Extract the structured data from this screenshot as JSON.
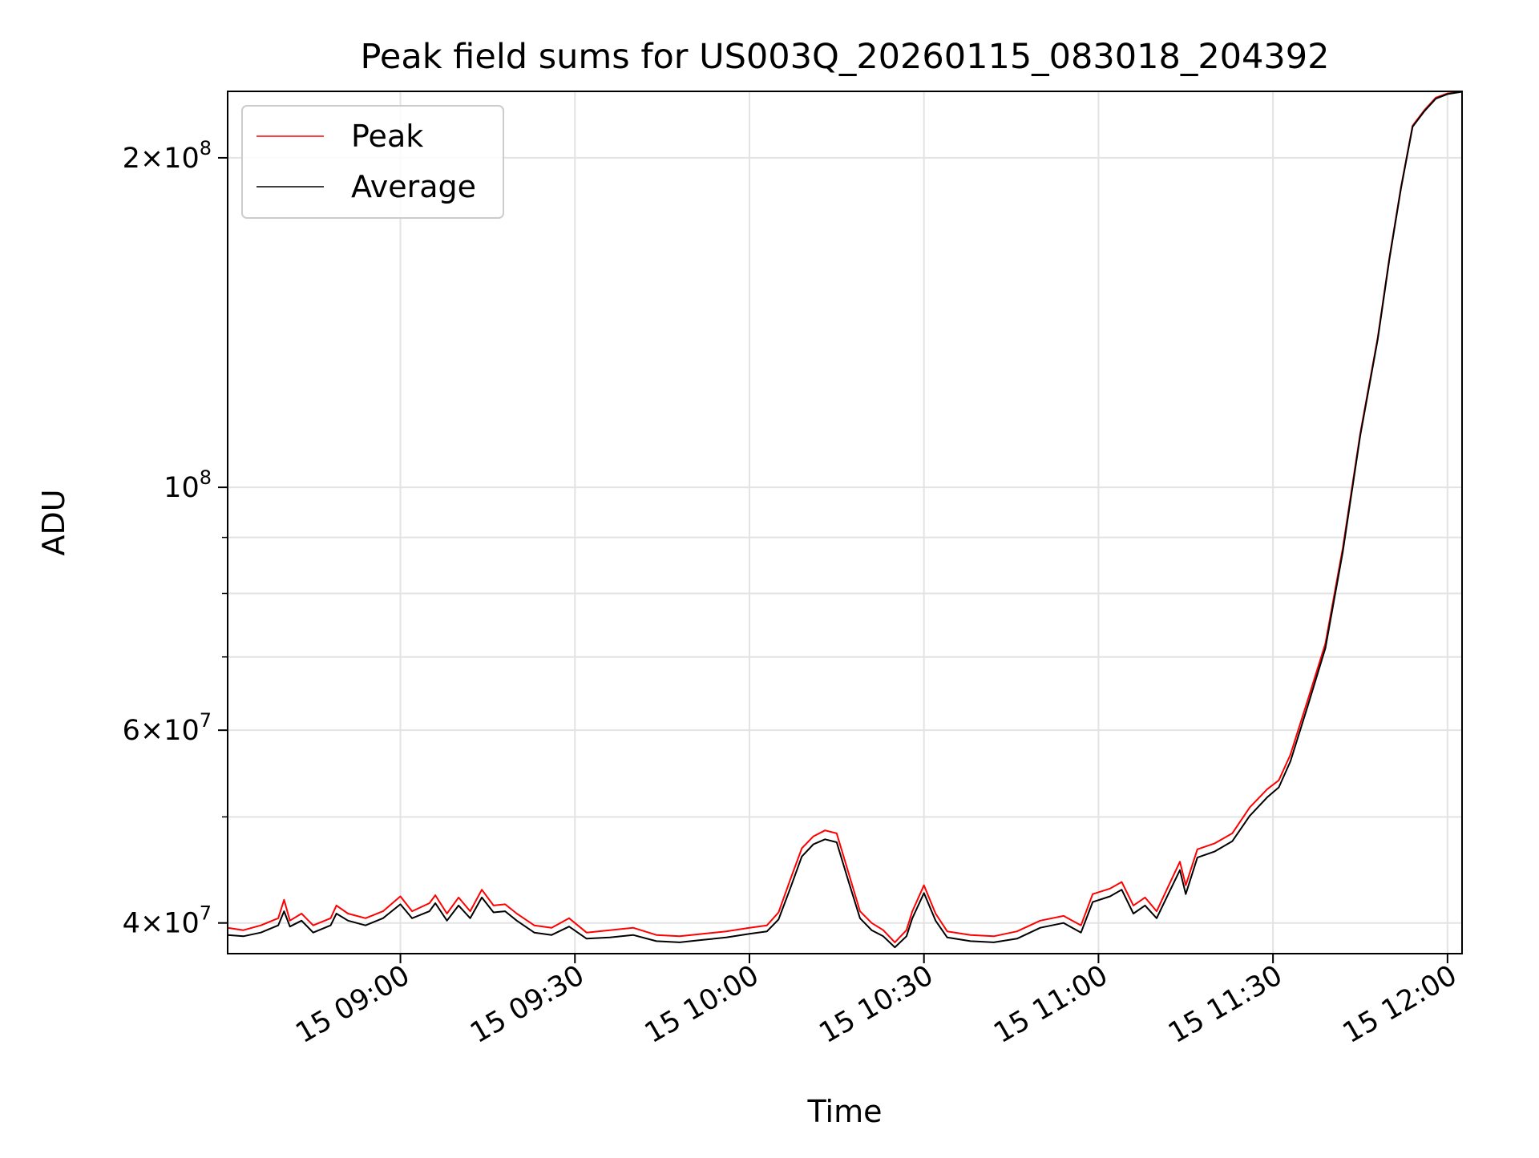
{
  "chart_data": {
    "type": "line",
    "title": "Peak field sums for US003Q_20260115_083018_204392",
    "xlabel": "Time",
    "ylabel": "ADU",
    "x_axis": {
      "type": "datetime",
      "range": [
        "2026-01-15 08:30:18",
        "2026-01-15 12:02:30"
      ],
      "ticks": [
        {
          "value": "2026-01-15 09:00",
          "label": "15 09:00"
        },
        {
          "value": "2026-01-15 09:30",
          "label": "15 09:30"
        },
        {
          "value": "2026-01-15 10:00",
          "label": "15 10:00"
        },
        {
          "value": "2026-01-15 10:30",
          "label": "15 10:30"
        },
        {
          "value": "2026-01-15 11:00",
          "label": "15 11:00"
        },
        {
          "value": "2026-01-15 11:30",
          "label": "15 11:30"
        },
        {
          "value": "2026-01-15 12:00",
          "label": "15 12:00"
        }
      ]
    },
    "y_axis": {
      "scale": "log",
      "range": [
        37500000,
        230000000
      ],
      "major_ticks": [
        {
          "value": 40000000,
          "mantissa": "4",
          "exponent": "7"
        },
        {
          "value": 60000000,
          "mantissa": "6",
          "exponent": "7"
        },
        {
          "value": 100000000,
          "mantissa": "",
          "exponent": "8"
        },
        {
          "value": 200000000,
          "mantissa": "2",
          "exponent": "8"
        }
      ],
      "minor_ticks": [
        50000000,
        70000000,
        80000000,
        90000000
      ]
    },
    "grid": true,
    "legend": {
      "position": "upper-left"
    },
    "series": [
      {
        "name": "Peak",
        "color": "#ff0000",
        "points": [
          [
            "2026-01-15 08:30:18",
            39600000
          ],
          [
            "2026-01-15 08:33",
            39400000
          ],
          [
            "2026-01-15 08:36",
            39800000
          ],
          [
            "2026-01-15 08:39",
            40400000
          ],
          [
            "2026-01-15 08:40",
            42000000
          ],
          [
            "2026-01-15 08:41",
            40200000
          ],
          [
            "2026-01-15 08:43",
            40800000
          ],
          [
            "2026-01-15 08:45",
            39800000
          ],
          [
            "2026-01-15 08:48",
            40400000
          ],
          [
            "2026-01-15 08:49",
            41500000
          ],
          [
            "2026-01-15 08:51",
            40800000
          ],
          [
            "2026-01-15 08:54",
            40400000
          ],
          [
            "2026-01-15 08:57",
            41000000
          ],
          [
            "2026-01-15 09:00",
            42300000
          ],
          [
            "2026-01-15 09:02",
            41000000
          ],
          [
            "2026-01-15 09:05",
            41700000
          ],
          [
            "2026-01-15 09:06",
            42400000
          ],
          [
            "2026-01-15 09:08",
            40800000
          ],
          [
            "2026-01-15 09:10",
            42200000
          ],
          [
            "2026-01-15 09:12",
            41000000
          ],
          [
            "2026-01-15 09:14",
            42900000
          ],
          [
            "2026-01-15 09:16",
            41500000
          ],
          [
            "2026-01-15 09:18",
            41600000
          ],
          [
            "2026-01-15 09:20",
            40800000
          ],
          [
            "2026-01-15 09:23",
            39800000
          ],
          [
            "2026-01-15 09:26",
            39600000
          ],
          [
            "2026-01-15 09:29",
            40400000
          ],
          [
            "2026-01-15 09:32",
            39200000
          ],
          [
            "2026-01-15 09:36",
            39400000
          ],
          [
            "2026-01-15 09:40",
            39600000
          ],
          [
            "2026-01-15 09:44",
            39000000
          ],
          [
            "2026-01-15 09:48",
            38900000
          ],
          [
            "2026-01-15 09:52",
            39100000
          ],
          [
            "2026-01-15 09:56",
            39300000
          ],
          [
            "2026-01-15 10:00",
            39600000
          ],
          [
            "2026-01-15 10:03",
            39800000
          ],
          [
            "2026-01-15 10:05",
            40900000
          ],
          [
            "2026-01-15 10:07",
            43800000
          ],
          [
            "2026-01-15 10:09",
            46800000
          ],
          [
            "2026-01-15 10:11",
            48000000
          ],
          [
            "2026-01-15 10:13",
            48600000
          ],
          [
            "2026-01-15 10:15",
            48300000
          ],
          [
            "2026-01-15 10:17",
            44500000
          ],
          [
            "2026-01-15 10:19",
            41000000
          ],
          [
            "2026-01-15 10:21",
            40000000
          ],
          [
            "2026-01-15 10:23",
            39400000
          ],
          [
            "2026-01-15 10:25",
            38400000
          ],
          [
            "2026-01-15 10:27",
            39400000
          ],
          [
            "2026-01-15 10:28",
            41000000
          ],
          [
            "2026-01-15 10:30",
            43300000
          ],
          [
            "2026-01-15 10:32",
            40800000
          ],
          [
            "2026-01-15 10:34",
            39300000
          ],
          [
            "2026-01-15 10:38",
            39000000
          ],
          [
            "2026-01-15 10:42",
            38900000
          ],
          [
            "2026-01-15 10:46",
            39300000
          ],
          [
            "2026-01-15 10:50",
            40200000
          ],
          [
            "2026-01-15 10:54",
            40600000
          ],
          [
            "2026-01-15 10:57",
            39800000
          ],
          [
            "2026-01-15 10:59",
            42500000
          ],
          [
            "2026-01-15 11:02",
            43000000
          ],
          [
            "2026-01-15 11:04",
            43600000
          ],
          [
            "2026-01-15 11:06",
            41500000
          ],
          [
            "2026-01-15 11:08",
            42200000
          ],
          [
            "2026-01-15 11:10",
            41000000
          ],
          [
            "2026-01-15 11:12",
            43200000
          ],
          [
            "2026-01-15 11:14",
            45500000
          ],
          [
            "2026-01-15 11:15",
            43300000
          ],
          [
            "2026-01-15 11:17",
            46700000
          ],
          [
            "2026-01-15 11:20",
            47300000
          ],
          [
            "2026-01-15 11:23",
            48300000
          ],
          [
            "2026-01-15 11:26",
            51000000
          ],
          [
            "2026-01-15 11:29",
            53000000
          ],
          [
            "2026-01-15 11:31",
            54000000
          ],
          [
            "2026-01-15 11:33",
            57000000
          ],
          [
            "2026-01-15 11:36",
            64000000
          ],
          [
            "2026-01-15 11:39",
            72000000
          ],
          [
            "2026-01-15 11:42",
            88000000
          ],
          [
            "2026-01-15 11:45",
            112000000
          ],
          [
            "2026-01-15 11:48",
            137000000
          ],
          [
            "2026-01-15 11:50",
            162000000
          ],
          [
            "2026-01-15 11:52",
            188000000
          ],
          [
            "2026-01-15 11:54",
            214000000
          ],
          [
            "2026-01-15 11:56",
            221000000
          ],
          [
            "2026-01-15 11:58",
            227000000
          ],
          [
            "2026-01-15 12:00",
            229000000
          ],
          [
            "2026-01-15 12:02:30",
            230000000
          ]
        ]
      },
      {
        "name": "Average",
        "color": "#000000",
        "points": [
          [
            "2026-01-15 08:30:18",
            39000000
          ],
          [
            "2026-01-15 08:33",
            38900000
          ],
          [
            "2026-01-15 08:36",
            39200000
          ],
          [
            "2026-01-15 08:39",
            39800000
          ],
          [
            "2026-01-15 08:40",
            41000000
          ],
          [
            "2026-01-15 08:41",
            39700000
          ],
          [
            "2026-01-15 08:43",
            40200000
          ],
          [
            "2026-01-15 08:45",
            39200000
          ],
          [
            "2026-01-15 08:48",
            39800000
          ],
          [
            "2026-01-15 08:49",
            40800000
          ],
          [
            "2026-01-15 08:51",
            40200000
          ],
          [
            "2026-01-15 08:54",
            39800000
          ],
          [
            "2026-01-15 08:57",
            40400000
          ],
          [
            "2026-01-15 09:00",
            41600000
          ],
          [
            "2026-01-15 09:02",
            40400000
          ],
          [
            "2026-01-15 09:05",
            41000000
          ],
          [
            "2026-01-15 09:06",
            41700000
          ],
          [
            "2026-01-15 09:08",
            40200000
          ],
          [
            "2026-01-15 09:10",
            41500000
          ],
          [
            "2026-01-15 09:12",
            40400000
          ],
          [
            "2026-01-15 09:14",
            42200000
          ],
          [
            "2026-01-15 09:16",
            40900000
          ],
          [
            "2026-01-15 09:18",
            41000000
          ],
          [
            "2026-01-15 09:20",
            40200000
          ],
          [
            "2026-01-15 09:23",
            39200000
          ],
          [
            "2026-01-15 09:26",
            39000000
          ],
          [
            "2026-01-15 09:29",
            39700000
          ],
          [
            "2026-01-15 09:32",
            38700000
          ],
          [
            "2026-01-15 09:36",
            38800000
          ],
          [
            "2026-01-15 09:40",
            39000000
          ],
          [
            "2026-01-15 09:44",
            38500000
          ],
          [
            "2026-01-15 09:48",
            38400000
          ],
          [
            "2026-01-15 09:52",
            38600000
          ],
          [
            "2026-01-15 09:56",
            38800000
          ],
          [
            "2026-01-15 10:00",
            39100000
          ],
          [
            "2026-01-15 10:03",
            39300000
          ],
          [
            "2026-01-15 10:05",
            40300000
          ],
          [
            "2026-01-15 10:07",
            43000000
          ],
          [
            "2026-01-15 10:09",
            46000000
          ],
          [
            "2026-01-15 10:11",
            47200000
          ],
          [
            "2026-01-15 10:13",
            47700000
          ],
          [
            "2026-01-15 10:15",
            47400000
          ],
          [
            "2026-01-15 10:17",
            43700000
          ],
          [
            "2026-01-15 10:19",
            40400000
          ],
          [
            "2026-01-15 10:21",
            39400000
          ],
          [
            "2026-01-15 10:23",
            38900000
          ],
          [
            "2026-01-15 10:25",
            38000000
          ],
          [
            "2026-01-15 10:27",
            38900000
          ],
          [
            "2026-01-15 10:28",
            40400000
          ],
          [
            "2026-01-15 10:30",
            42600000
          ],
          [
            "2026-01-15 10:32",
            40200000
          ],
          [
            "2026-01-15 10:34",
            38800000
          ],
          [
            "2026-01-15 10:38",
            38500000
          ],
          [
            "2026-01-15 10:42",
            38400000
          ],
          [
            "2026-01-15 10:46",
            38700000
          ],
          [
            "2026-01-15 10:50",
            39600000
          ],
          [
            "2026-01-15 10:54",
            40000000
          ],
          [
            "2026-01-15 10:57",
            39200000
          ],
          [
            "2026-01-15 10:59",
            41800000
          ],
          [
            "2026-01-15 11:02",
            42300000
          ],
          [
            "2026-01-15 11:04",
            42900000
          ],
          [
            "2026-01-15 11:06",
            40800000
          ],
          [
            "2026-01-15 11:08",
            41500000
          ],
          [
            "2026-01-15 11:10",
            40400000
          ],
          [
            "2026-01-15 11:12",
            42500000
          ],
          [
            "2026-01-15 11:14",
            44700000
          ],
          [
            "2026-01-15 11:15",
            42500000
          ],
          [
            "2026-01-15 11:17",
            45900000
          ],
          [
            "2026-01-15 11:20",
            46500000
          ],
          [
            "2026-01-15 11:23",
            47500000
          ],
          [
            "2026-01-15 11:26",
            50100000
          ],
          [
            "2026-01-15 11:29",
            52100000
          ],
          [
            "2026-01-15 11:31",
            53200000
          ],
          [
            "2026-01-15 11:33",
            56200000
          ],
          [
            "2026-01-15 11:36",
            63200000
          ],
          [
            "2026-01-15 11:39",
            71300000
          ],
          [
            "2026-01-15 11:42",
            87300000
          ],
          [
            "2026-01-15 11:45",
            111500000
          ],
          [
            "2026-01-15 11:48",
            136500000
          ],
          [
            "2026-01-15 11:50",
            161500000
          ],
          [
            "2026-01-15 11:52",
            187500000
          ],
          [
            "2026-01-15 11:54",
            213500000
          ],
          [
            "2026-01-15 11:56",
            220500000
          ],
          [
            "2026-01-15 11:58",
            226500000
          ],
          [
            "2026-01-15 12:00",
            228700000
          ],
          [
            "2026-01-15 12:02:30",
            229800000
          ]
        ]
      }
    ]
  }
}
